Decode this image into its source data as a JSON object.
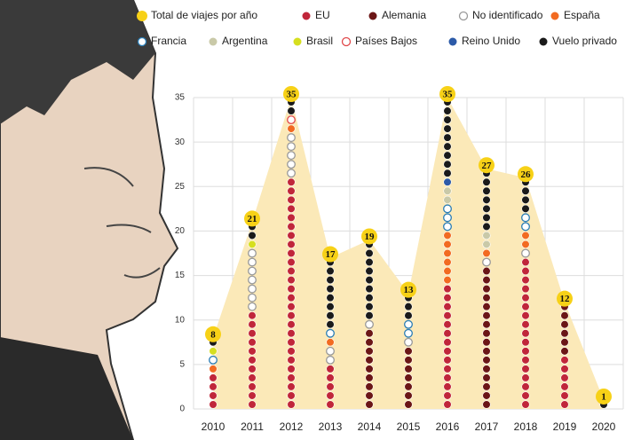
{
  "chart_data": {
    "type": "dot",
    "categories": [
      "2010",
      "2011",
      "2012",
      "2013",
      "2014",
      "2015",
      "2016",
      "2017",
      "2018",
      "2019",
      "2020"
    ],
    "total": {
      "name": "Total de viajes por año",
      "color": "#f7d117",
      "area_color": "#fbe9b8",
      "values": [
        8,
        21,
        35,
        17,
        19,
        13,
        35,
        27,
        26,
        12,
        1
      ]
    },
    "series": [
      {
        "name": "EU",
        "color": "#c0263a",
        "values": [
          4,
          11,
          26,
          5,
          0,
          0,
          14,
          0,
          17,
          6,
          0
        ]
      },
      {
        "name": "Alemania",
        "color": "#6b1616",
        "values": [
          0,
          0,
          0,
          0,
          9,
          7,
          0,
          16,
          0,
          6,
          0
        ]
      },
      {
        "name": "No identificado",
        "color": "#999999",
        "hollow": true,
        "values": [
          0,
          7,
          5,
          2,
          1,
          1,
          0,
          1,
          1,
          0,
          0
        ]
      },
      {
        "name": "España",
        "color": "#f26b21",
        "values": [
          1,
          0,
          1,
          1,
          0,
          0,
          6,
          1,
          2,
          0,
          0
        ]
      },
      {
        "name": "Francia",
        "color": "#2a7db5",
        "hollow": true,
        "values": [
          1,
          0,
          0,
          1,
          0,
          2,
          3,
          0,
          2,
          0,
          0
        ]
      },
      {
        "name": "Argentina",
        "color": "#c9c9a8",
        "values": [
          0,
          0,
          0,
          0,
          0,
          0,
          2,
          2,
          0,
          0,
          0
        ]
      },
      {
        "name": "Brasil",
        "color": "#d6df1f",
        "values": [
          1,
          1,
          0,
          0,
          0,
          0,
          0,
          0,
          0,
          0,
          0
        ]
      },
      {
        "name": "Países Bajos",
        "color": "#e0484a",
        "hollow": true,
        "values": [
          0,
          0,
          1,
          0,
          0,
          0,
          0,
          0,
          0,
          0,
          0
        ]
      },
      {
        "name": "Reino Unido",
        "color": "#2c5aa8",
        "values": [
          0,
          0,
          0,
          0,
          0,
          0,
          1,
          0,
          0,
          0,
          0
        ]
      },
      {
        "name": "Vuelo privado",
        "color": "#1a1a1a",
        "values": [
          1,
          2,
          2,
          8,
          9,
          3,
          9,
          7,
          4,
          0,
          1
        ]
      }
    ],
    "ylim": [
      0,
      35
    ],
    "yticks": [
      0,
      5,
      10,
      15,
      20,
      25,
      30,
      35
    ],
    "grid": true
  }
}
